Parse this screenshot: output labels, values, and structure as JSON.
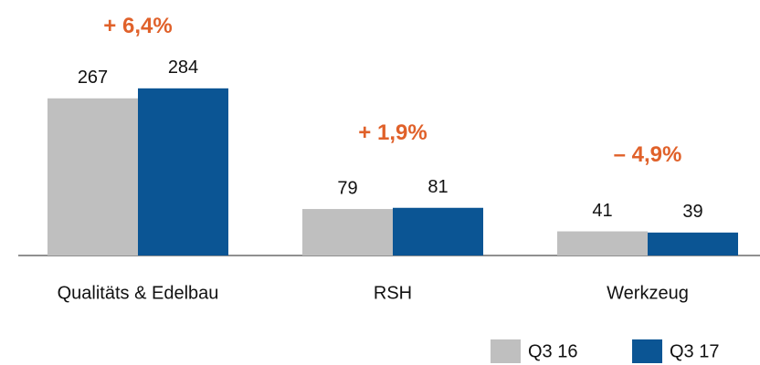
{
  "chart_data": {
    "type": "bar",
    "categories": [
      "Qualitäts & Edelbau",
      "RSH",
      "Werkzeug"
    ],
    "series": [
      {
        "name": "Q3 16",
        "color": "#bfbfbf",
        "values": [
          267,
          79,
          41
        ]
      },
      {
        "name": "Q3 17",
        "color": "#0b5594",
        "values": [
          284,
          81,
          39
        ]
      }
    ],
    "annotations": [
      "+ 6,4%",
      "+ 1,9%",
      "– 4,9%"
    ],
    "annotation_color": "#e0612a"
  }
}
